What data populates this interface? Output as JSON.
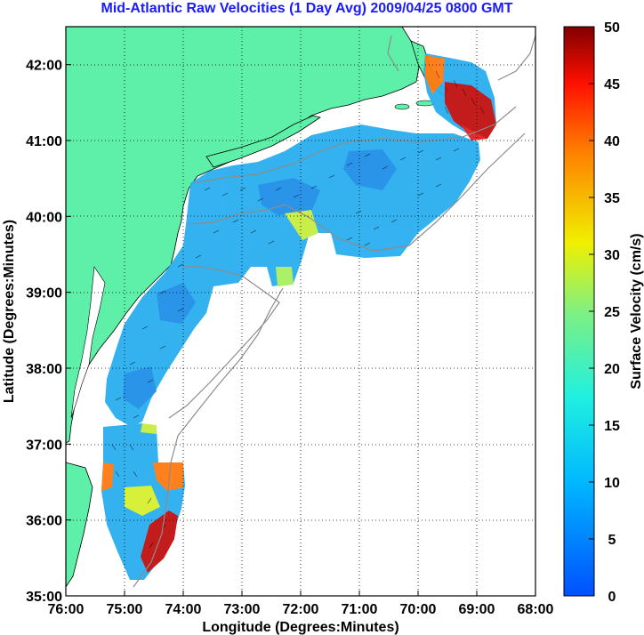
{
  "title": "Mid-Atlantic Raw Velocities (1 Day Avg) 2009/04/25 0800 GMT",
  "map": {
    "xlabel": "Longitude (Degrees:Minutes)",
    "ylabel": "Latitude (Degrees:Minutes)",
    "lon_range": [
      -76,
      -68
    ],
    "lat_range": [
      35,
      42.5
    ],
    "lon_ticks": [
      "76:00",
      "75:00",
      "74:00",
      "73:00",
      "72:00",
      "71:00",
      "70:00",
      "69:00",
      "68:00"
    ],
    "lat_ticks": [
      "35:00",
      "36:00",
      "37:00",
      "38:00",
      "39:00",
      "40:00",
      "41:00",
      "42:00"
    ],
    "land_color": "#5ef0a8",
    "ocean_color": "#ffffff"
  },
  "colorbar": {
    "label": "Surface Velocity (cm/s)",
    "range": [
      0,
      50
    ],
    "ticks": [
      "0",
      "5",
      "10",
      "15",
      "20",
      "25",
      "30",
      "35",
      "40",
      "45",
      "50"
    ],
    "colormap": "jet"
  }
}
